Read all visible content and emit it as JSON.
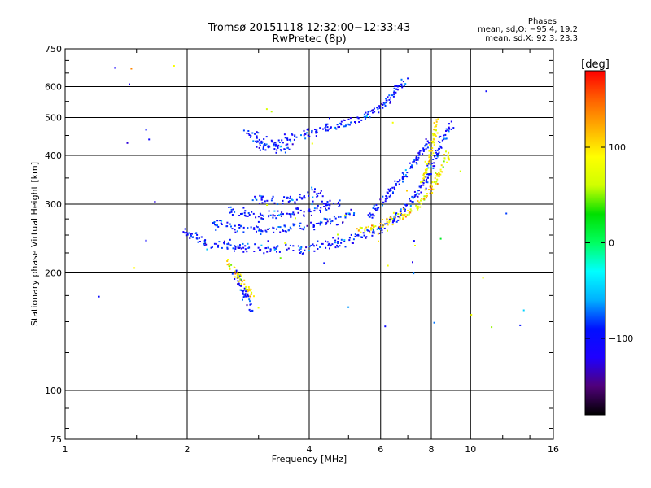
{
  "header": {
    "title": "Tromsø 20151118 12:32:00−12:33:43",
    "subtitle": "RwPretec (8p)"
  },
  "phases": {
    "title": "Phases",
    "o_line": "mean, sd,O: −95.4, 19.2",
    "x_line": "mean, sd,X:  92.3, 23.3"
  },
  "chart_data": {
    "type": "scatter",
    "xlabel": "Frequency [MHz]",
    "ylabel": "Stationary phase Virtual Height [km]",
    "x_scale": "log",
    "y_scale": "log",
    "xlim": [
      1,
      16
    ],
    "ylim": [
      75,
      750
    ],
    "xticks": [
      1,
      2,
      4,
      6,
      8,
      10,
      16
    ],
    "xtick_labels": [
      "1",
      "2",
      "4",
      "6",
      "8",
      "10",
      "16"
    ],
    "yticks": [
      75,
      100,
      200,
      300,
      400,
      500,
      600,
      750
    ],
    "ytick_labels": [
      "75",
      "100",
      "200",
      "300",
      "400",
      "500",
      "600",
      "750"
    ],
    "grid": true,
    "colorbar": {
      "label": "[deg]",
      "range": [
        -180,
        180
      ],
      "ticks": [
        100,
        0,
        -100
      ],
      "tick_labels": [
        "100",
        "0",
        "−100"
      ],
      "colors": [
        "#000000",
        "#50007a",
        "#1f00ff",
        "#0010ff",
        "#00b0ff",
        "#00ffff",
        "#00ff60",
        "#00e000",
        "#d0ff00",
        "#ffff00",
        "#ffb000",
        "#ff6000",
        "#ff0000"
      ]
    },
    "series": [
      {
        "name": "O",
        "phase_mean": -95.4,
        "phase_sd": 19.2,
        "traces": [
          {
            "x": [
              1.95,
              2.1,
              2.3,
              2.6,
              3.0,
              3.5,
              4.0,
              4.5,
              5.0,
              5.5,
              6.0,
              6.5,
              7.0,
              7.4,
              7.8,
              8.1,
              8.4,
              8.7,
              9.0
            ],
            "y": [
              258,
              245,
              237,
              233,
              231,
              230,
              232,
              236,
              242,
              250,
              262,
              278,
              298,
              320,
              350,
              385,
              420,
              455,
              480
            ]
          },
          {
            "x": [
              2.3,
              2.6,
              3.0,
              3.5,
              4.0,
              4.6,
              5.2
            ],
            "y": [
              268,
              260,
              258,
              260,
              264,
              272,
              284
            ]
          },
          {
            "x": [
              2.5,
              2.8,
              3.2,
              3.7,
              4.2,
              4.8
            ],
            "y": [
              288,
              282,
              280,
              284,
              292,
              305
            ]
          },
          {
            "x": [
              2.9,
              3.3,
              3.8,
              4.3
            ],
            "y": [
              312,
              308,
              312,
              322
            ]
          },
          {
            "x": [
              3.0,
              3.3,
              3.6,
              4.0,
              4.4,
              4.8,
              5.4,
              6.0,
              6.5,
              7.0
            ],
            "y": [
              420,
              430,
              440,
              455,
              470,
              480,
              500,
              530,
              580,
              630
            ]
          },
          {
            "x": [
              2.75,
              3.0,
              3.3,
              3.6
            ],
            "y": [
              460,
              438,
              420,
              410
            ]
          },
          {
            "x": [
              5.6,
              6.0,
              6.5,
              7.0,
              7.5,
              7.9
            ],
            "y": [
              280,
              300,
              330,
              365,
              400,
              440
            ]
          },
          {
            "x": [
              2.6,
              2.75,
              2.9
            ],
            "y": [
              200,
              180,
              160
            ]
          }
        ]
      },
      {
        "name": "X",
        "phase_mean": 92.3,
        "phase_sd": 23.3,
        "traces": [
          {
            "x": [
              5.2,
              5.8,
              6.4,
              7.0,
              7.5,
              7.9,
              8.2,
              8.5,
              8.8
            ],
            "y": [
              255,
              262,
              272,
              285,
              300,
              320,
              345,
              370,
              400
            ]
          },
          {
            "x": [
              7.6,
              7.9,
              8.1,
              8.3
            ],
            "y": [
              340,
              390,
              440,
              500
            ]
          },
          {
            "x": [
              2.5,
              2.7,
              2.9
            ],
            "y": [
              215,
              195,
              175
            ]
          }
        ]
      }
    ]
  }
}
